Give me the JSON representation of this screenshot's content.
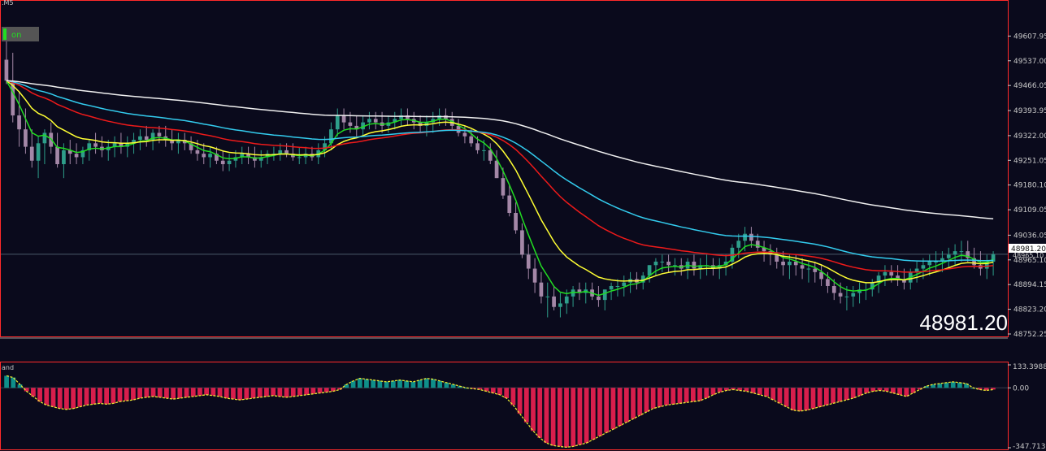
{
  "header": {
    "timeframe_label": ".M5",
    "toggle_label": "on",
    "subwindow_label": "and"
  },
  "big_price": "48981.20",
  "current_price_tag": "48981.20",
  "current_price_tag_behind": "48965.10",
  "colors": {
    "background": "#0a0a1c",
    "bull": "#2e9e8a",
    "bear": "#a487a7",
    "osc_pos": "#0f8f8a",
    "osc_neg": "#d81e4c",
    "osc_line": "#e8e832",
    "ma_fast": "#22dd22",
    "ma_mid": "#ffff33",
    "ma_red": "#ee1a1a",
    "ma_cyan": "#33ccee",
    "ma_slow": "#f0f0f0",
    "frame": "#ff2a2a"
  },
  "chart_data": [
    {
      "type": "candlestick",
      "title": "",
      "ylim": [
        48752.25,
        49678.85
      ],
      "y_ticks": [
        "49607.95",
        "49537.00",
        "49466.05",
        "49393.95",
        "49322.00",
        "49251.05",
        "49180.10",
        "49109.05",
        "49036.05",
        "48965.10",
        "48894.15",
        "48823.20",
        "48752.25"
      ],
      "current_price": 48981.2,
      "candles": {
        "open": [
          49540,
          49480,
          49380,
          49340,
          49290,
          49250,
          49300,
          49330,
          49290,
          49240,
          49280,
          49270,
          49260,
          49280,
          49300,
          49290,
          49280,
          49290,
          49300,
          49290,
          49300,
          49310,
          49320,
          49310,
          49330,
          49320,
          49310,
          49300,
          49310,
          49300,
          49280,
          49270,
          49260,
          49270,
          49250,
          49240,
          49250,
          49260,
          49270,
          49260,
          49250,
          49260,
          49270,
          49270,
          49280,
          49270,
          49260,
          49260,
          49270,
          49260,
          49280,
          49300,
          49340,
          49380,
          49360,
          49350,
          49340,
          49360,
          49370,
          49360,
          49350,
          49360,
          49370,
          49380,
          49370,
          49360,
          49350,
          49360,
          49370,
          49380,
          49370,
          49350,
          49330,
          49320,
          49300,
          49280,
          49280,
          49250,
          49200,
          49150,
          49100,
          49050,
          48980,
          48940,
          48900,
          48860,
          48860,
          48830,
          48840,
          48860,
          48880,
          48870,
          48880,
          48860,
          48850,
          48880,
          48890,
          48890,
          48900,
          48910,
          48900,
          48920,
          48950,
          48960,
          48960,
          48950,
          48950,
          48940,
          48960,
          48940,
          48950,
          48950,
          48940,
          48950,
          48960,
          49000,
          49020,
          49040,
          49020,
          49000,
          48990,
          48980,
          48960,
          48950,
          48960,
          48950,
          48940,
          48940,
          48930,
          48910,
          48890,
          48870,
          48860,
          48860,
          48870,
          48880,
          48880,
          48900,
          48920,
          48930,
          48920,
          48910,
          48900,
          48930,
          48940,
          48950,
          48960,
          48960,
          48970,
          48980,
          48990,
          48990,
          48970,
          48950,
          48940,
          48960
        ],
        "high": [
          49600,
          49560,
          49450,
          49400,
          49340,
          49320,
          49340,
          49360,
          49330,
          49300,
          49310,
          49300,
          49290,
          49310,
          49330,
          49320,
          49310,
          49320,
          49330,
          49320,
          49330,
          49340,
          49350,
          49340,
          49350,
          49350,
          49340,
          49330,
          49330,
          49320,
          49310,
          49300,
          49290,
          49290,
          49280,
          49270,
          49280,
          49290,
          49290,
          49290,
          49280,
          49280,
          49290,
          49300,
          49300,
          49300,
          49290,
          49290,
          49290,
          49300,
          49320,
          49360,
          49400,
          49400,
          49390,
          49380,
          49380,
          49390,
          49390,
          49390,
          49380,
          49390,
          49400,
          49400,
          49390,
          49380,
          49380,
          49390,
          49400,
          49400,
          49390,
          49370,
          49350,
          49340,
          49320,
          49310,
          49300,
          49280,
          49230,
          49180,
          49130,
          49070,
          49010,
          48970,
          48930,
          48900,
          48890,
          48870,
          48880,
          48890,
          48900,
          48900,
          48900,
          48890,
          48880,
          48900,
          48910,
          48920,
          48930,
          48930,
          48930,
          48950,
          48970,
          48980,
          48980,
          48970,
          48970,
          48970,
          48980,
          48970,
          48980,
          48970,
          48970,
          48980,
          49010,
          49040,
          49060,
          49060,
          49040,
          49020,
          49010,
          49000,
          48990,
          48980,
          48980,
          48970,
          48960,
          48960,
          48950,
          48930,
          48910,
          48900,
          48890,
          48890,
          48900,
          48900,
          48910,
          48930,
          48950,
          48950,
          48950,
          48940,
          48940,
          48960,
          48970,
          48980,
          48990,
          48990,
          49000,
          49010,
          49020,
          49020,
          49000,
          48990,
          48980,
          48990
        ],
        "low": [
          49470,
          49360,
          49290,
          49270,
          49230,
          49200,
          49240,
          49270,
          49230,
          49200,
          49240,
          49240,
          49240,
          49250,
          49270,
          49260,
          49250,
          49260,
          49270,
          49260,
          49270,
          49280,
          49290,
          49280,
          49300,
          49290,
          49280,
          49270,
          49280,
          49270,
          49250,
          49240,
          49230,
          49240,
          49220,
          49220,
          49230,
          49240,
          49240,
          49230,
          49230,
          49240,
          49250,
          49250,
          49260,
          49250,
          49240,
          49240,
          49250,
          49240,
          49260,
          49280,
          49320,
          49340,
          49330,
          49320,
          49320,
          49340,
          49340,
          49330,
          49330,
          49340,
          49350,
          49350,
          49340,
          49330,
          49320,
          49330,
          49350,
          49350,
          49340,
          49320,
          49300,
          49290,
          49270,
          49250,
          49240,
          49200,
          49140,
          49090,
          49040,
          48970,
          48910,
          48870,
          48840,
          48800,
          48820,
          48800,
          48810,
          48830,
          48850,
          48840,
          48850,
          48830,
          48820,
          48850,
          48860,
          48860,
          48870,
          48880,
          48880,
          48900,
          48920,
          48930,
          48930,
          48920,
          48920,
          48910,
          48920,
          48910,
          48920,
          48920,
          48910,
          48920,
          48940,
          48970,
          48990,
          49000,
          48990,
          48960,
          48950,
          48940,
          48920,
          48910,
          48920,
          48910,
          48900,
          48900,
          48890,
          48870,
          48850,
          48840,
          48820,
          48830,
          48840,
          48850,
          48860,
          48870,
          48890,
          48900,
          48890,
          48880,
          48880,
          48900,
          48910,
          48920,
          48930,
          48930,
          48940,
          48950,
          48960,
          48960,
          48940,
          48920,
          48910,
          48920
        ],
        "close": [
          49480,
          49380,
          49340,
          49290,
          49250,
          49300,
          49330,
          49290,
          49240,
          49280,
          49270,
          49260,
          49280,
          49300,
          49290,
          49280,
          49290,
          49300,
          49290,
          49300,
          49310,
          49320,
          49310,
          49330,
          49320,
          49310,
          49300,
          49310,
          49300,
          49280,
          49270,
          49260,
          49270,
          49250,
          49240,
          49250,
          49260,
          49270,
          49260,
          49250,
          49260,
          49270,
          49270,
          49280,
          49270,
          49260,
          49260,
          49270,
          49260,
          49280,
          49300,
          49340,
          49380,
          49360,
          49350,
          49340,
          49360,
          49370,
          49360,
          49350,
          49360,
          49370,
          49380,
          49370,
          49360,
          49350,
          49360,
          49370,
          49380,
          49370,
          49350,
          49330,
          49320,
          49300,
          49280,
          49280,
          49250,
          49200,
          49150,
          49100,
          49050,
          48980,
          48940,
          48900,
          48860,
          48860,
          48830,
          48840,
          48860,
          48880,
          48870,
          48880,
          48860,
          48850,
          48880,
          48890,
          48890,
          48900,
          48910,
          48900,
          48920,
          48950,
          48960,
          48960,
          48950,
          48950,
          48940,
          48960,
          48940,
          48950,
          48950,
          48940,
          48950,
          48960,
          49000,
          49020,
          49040,
          49020,
          49000,
          48990,
          48980,
          48960,
          48950,
          48960,
          48950,
          48940,
          48940,
          48930,
          48910,
          48890,
          48870,
          48860,
          48860,
          48870,
          48880,
          48880,
          48900,
          48920,
          48930,
          48920,
          48910,
          48900,
          48930,
          48940,
          48950,
          48960,
          48960,
          48970,
          48980,
          48990,
          48990,
          48970,
          48950,
          48940,
          48960,
          48981.2
        ]
      },
      "moving_averages": [
        {
          "color_key": "ma_fast",
          "period": 5
        },
        {
          "color_key": "ma_mid",
          "period": 13
        },
        {
          "color_key": "ma_red",
          "period": 34
        },
        {
          "color_key": "ma_cyan",
          "period": 55
        },
        {
          "color_key": "ma_slow",
          "period": 144
        }
      ]
    },
    {
      "type": "histogram",
      "title": "",
      "ylim": [
        -347.7132,
        133.3988
      ],
      "y_ticks": [
        "133.3988",
        "0.00",
        "-347.7132"
      ],
      "values": [
        70,
        60,
        20,
        -20,
        -50,
        -80,
        -100,
        -110,
        -120,
        -125,
        -120,
        -110,
        -100,
        -95,
        -90,
        -95,
        -90,
        -80,
        -75,
        -70,
        -60,
        -55,
        -50,
        -55,
        -60,
        -65,
        -60,
        -55,
        -50,
        -45,
        -40,
        -45,
        -50,
        -60,
        -65,
        -70,
        -65,
        -60,
        -55,
        -50,
        -45,
        -50,
        -55,
        -50,
        -45,
        -40,
        -35,
        -30,
        -25,
        -20,
        -10,
        20,
        40,
        55,
        50,
        45,
        40,
        35,
        40,
        45,
        40,
        35,
        45,
        55,
        50,
        40,
        30,
        20,
        10,
        0,
        -5,
        -10,
        -20,
        -30,
        -40,
        -60,
        -100,
        -150,
        -200,
        -250,
        -290,
        -320,
        -335,
        -340,
        -345,
        -340,
        -330,
        -320,
        -300,
        -280,
        -260,
        -240,
        -220,
        -200,
        -180,
        -160,
        -140,
        -120,
        -110,
        -100,
        -95,
        -90,
        -85,
        -80,
        -75,
        -60,
        -40,
        -25,
        -15,
        -10,
        -15,
        -20,
        -30,
        -40,
        -50,
        -70,
        -90,
        -110,
        -130,
        -135,
        -130,
        -120,
        -110,
        -100,
        -90,
        -80,
        -70,
        -60,
        -45,
        -30,
        -20,
        -15,
        -20,
        -30,
        -40,
        -50,
        -30,
        -10,
        10,
        20,
        25,
        30,
        35,
        30,
        25,
        0,
        -10,
        -15,
        -10
      ],
      "colors_by_sign": {
        "positive": "osc_pos",
        "negative": "osc_neg"
      }
    }
  ]
}
